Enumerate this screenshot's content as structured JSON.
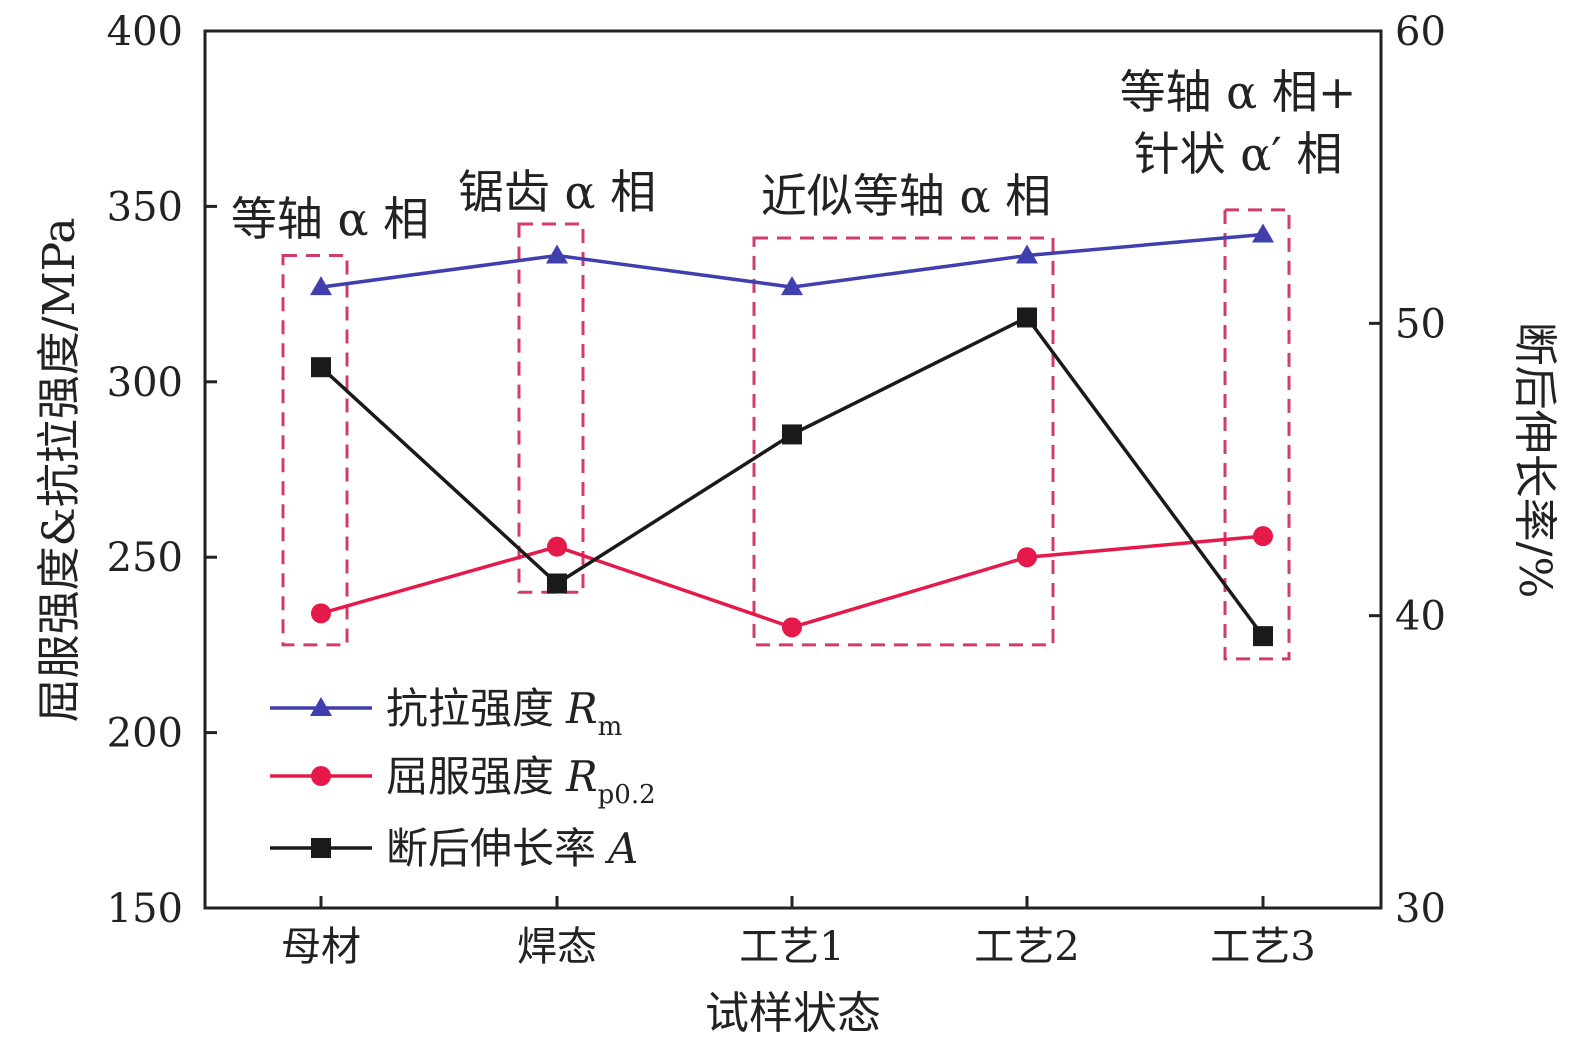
{
  "chart_data": {
    "type": "line",
    "categories": [
      "母材",
      "焊态",
      "工艺1",
      "工艺2",
      "工艺3"
    ],
    "xlabel": "试样状态",
    "ylabel": "屈服强度&抗拉强度/MPa",
    "ylabel_right": "断后伸长率/%",
    "ylim": [
      150,
      400
    ],
    "ylim_right": [
      30,
      60
    ],
    "yticks": [
      "150",
      "200",
      "250",
      "300",
      "350",
      "400"
    ],
    "yticks_right": [
      "30",
      "40",
      "50",
      "60"
    ],
    "grid": false,
    "legend_position": "bottom-left",
    "series": [
      {
        "name": "抗拉强度",
        "name_italic": "R",
        "name_sub": "m",
        "axis": "left",
        "marker": "triangle",
        "color": "#3f3fae",
        "values": [
          327,
          336,
          327,
          336,
          342
        ]
      },
      {
        "name": "屈服强度",
        "name_italic": "R",
        "name_sub": "p0.2",
        "axis": "left",
        "marker": "circle",
        "color": "#e5194a",
        "values": [
          234,
          253,
          230,
          250,
          256
        ]
      },
      {
        "name": "断后伸长率",
        "name_italic": "A",
        "name_sub": "",
        "axis": "right",
        "marker": "square",
        "color": "#1a1a1a",
        "values": [
          48.5,
          41.1,
          46.2,
          50.2,
          39.3
        ]
      }
    ],
    "annotations": [
      {
        "lines": [
          "等轴 α 相"
        ]
      },
      {
        "lines": [
          "锯齿 α 相"
        ]
      },
      {
        "lines": [
          "近似等轴 α 相"
        ]
      },
      {
        "lines": [
          "等轴 α 相+",
          "针状 α′ 相"
        ]
      }
    ],
    "highlight_boxes": [
      {
        "covers": [
          "母材"
        ],
        "range": [
          225,
          336
        ]
      },
      {
        "covers": [
          "焊态"
        ],
        "range": [
          240,
          345
        ]
      },
      {
        "covers": [
          "工艺1",
          "工艺2"
        ],
        "range": [
          225,
          341
        ]
      },
      {
        "covers": [
          "工艺3"
        ],
        "range": [
          221,
          349
        ]
      }
    ],
    "box_color": "#d23c6a"
  }
}
